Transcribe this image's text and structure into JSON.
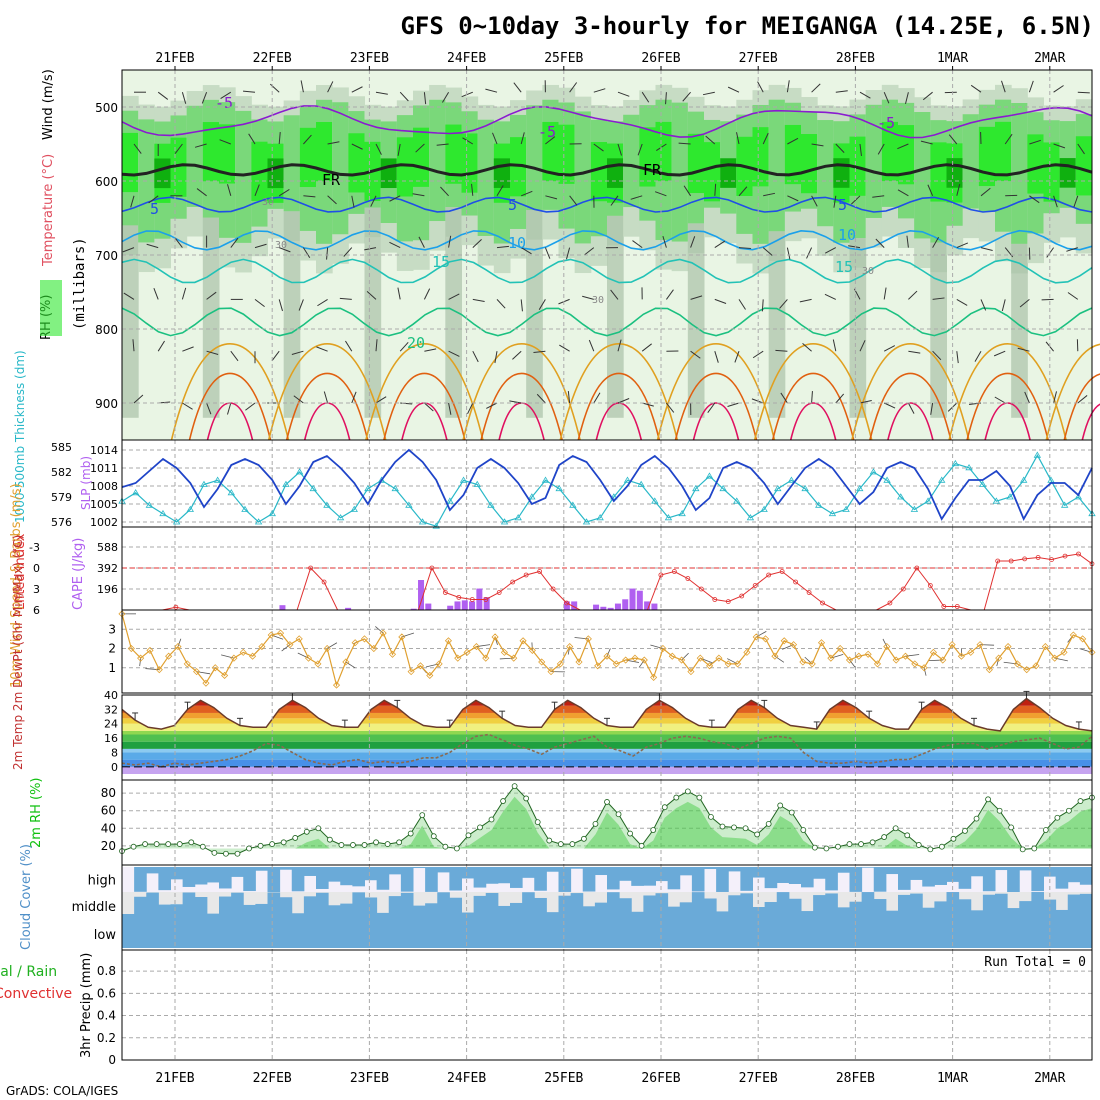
{
  "title": "GFS 0~10day 3-hourly for MEIGANGA (14.25E, 6.5N)",
  "credit": "GrADS: COLA/IGES",
  "run_total": "Run Total = 0",
  "colors": {
    "rh_light": "#e9f5e4",
    "rh_mid": "#c7dcc4",
    "rh_dark": "#a9c2a8",
    "rh_green": "#7ad87a",
    "rh_bright": "#2ee82e",
    "rh_deep": "#0fb00f",
    "freezing": "#222222",
    "t_minus5": "#8a1bd0",
    "t_5": "#1f4fe6",
    "t_10": "#1ba0ea",
    "t_15": "#22c2b6",
    "t_20": "#1bc080",
    "t_25": "#e0a020",
    "t_30": "#e06010",
    "t_35": "#e01060",
    "slp": "#1f44c8",
    "thickness": "#29b8c8",
    "lifted": "#e03030",
    "cape": "#b060f0",
    "wind": "#e0a030",
    "rh2m": "#10c010",
    "cloud": "#6aaad8",
    "cloud_bg": "#e8e8e8",
    "high_bg": "#f4f0fa",
    "grid": "#aaaaaa"
  },
  "chart_data": [
    {
      "panel": "profile",
      "type": "heatmap",
      "title": "RH / Temperature / Wind",
      "ylabel_parts": [
        "RH (%)",
        "Temperature (°C)",
        "Wind (m/s)"
      ],
      "ylabel_units": "(millibars)",
      "ylim": [
        950,
        450
      ],
      "yticks": [
        500,
        600,
        700,
        800,
        900
      ],
      "contour_labels": [
        "-5",
        "-5",
        "-5",
        "FR",
        "FR",
        "5",
        "5",
        "5",
        "10",
        "10",
        "15",
        "15",
        "20",
        "30",
        "30",
        "30",
        "30"
      ]
    },
    {
      "panel": "slp_thickness",
      "type": "line",
      "ylabel_left": "1000-500mb Thickness (dm)",
      "ylabel_right": "SLP (mb)",
      "yticks_left": [
        576,
        579,
        582,
        585
      ],
      "yticks_right": [
        1002,
        1005,
        1008,
        1011,
        1014
      ],
      "series": [
        {
          "name": "SLP (mb)",
          "values": [
            1007.8,
            1008.5,
            1010.5,
            1012.5,
            1011,
            1008.5,
            1004.5,
            1007.5,
            1011.5,
            1012.5,
            1011.5,
            1009,
            1005,
            1008,
            1012,
            1013,
            1011,
            1008.5,
            1005,
            1009,
            1012,
            1014,
            1012,
            1009,
            1004,
            1006.5,
            1011,
            1012.5,
            1011,
            1008.5,
            1005,
            1006,
            1011.5,
            1013,
            1012,
            1009,
            1005.5,
            1008,
            1011.5,
            1013,
            1011,
            1008,
            1004,
            1006,
            1011,
            1012,
            1011,
            1008.5,
            1005,
            1008,
            1011,
            1012.5,
            1011,
            1008,
            1005,
            1007,
            1011,
            1012,
            1011,
            1007.5,
            1002.5,
            1006,
            1009,
            1009,
            1010.5,
            1008,
            1002.5,
            1006.5,
            1008.5,
            1008.5,
            1006.5,
            1011
          ]
        },
        {
          "name": "Thickness (dm)",
          "values": [
            578.5,
            579.5,
            578,
            577,
            576,
            577.5,
            580.5,
            581,
            579.5,
            577.5,
            576,
            577,
            580.5,
            582,
            580,
            578,
            576.5,
            577.5,
            580,
            581,
            580,
            578,
            576,
            575.5,
            578.5,
            581,
            580.5,
            578,
            576,
            576.5,
            579,
            581,
            580,
            578,
            576,
            576.5,
            579,
            581,
            580.5,
            578.5,
            576.5,
            577,
            580,
            581.5,
            580,
            578.5,
            576.5,
            577.5,
            580,
            581,
            580,
            578,
            577,
            577.5,
            580,
            582,
            581,
            579,
            577.5,
            578.5,
            581,
            583,
            582.5,
            580.5,
            578.5,
            579,
            581,
            584,
            581,
            578,
            579,
            577
          ]
        }
      ]
    },
    {
      "panel": "cape_li",
      "type": "bar",
      "ylabel_left": "Lifted Index",
      "ylabel_right": "CAPE (J/kg)",
      "yticks_left": [
        -3,
        0,
        3,
        6
      ],
      "yticks_right": [
        196,
        392,
        588
      ],
      "lifted_index_series": {
        "name": "Lifted Index",
        "values": [
          6,
          6,
          6,
          6,
          5.6,
          6,
          6,
          6,
          6,
          6,
          6,
          6,
          6,
          6,
          0,
          2,
          6,
          6,
          6,
          6,
          6,
          6,
          6,
          0,
          3.5,
          4.2,
          4.5,
          4.5,
          3.5,
          2,
          1,
          0.5,
          3,
          5,
          6,
          6,
          6,
          6,
          6,
          6,
          1,
          0.5,
          1.5,
          3,
          4.5,
          4.8,
          4,
          2.5,
          1,
          0.5,
          2,
          3.5,
          5,
          6,
          6,
          6,
          6,
          5,
          3,
          0,
          2.5,
          5.5,
          5.5,
          6,
          6,
          -1,
          -1,
          -1.3,
          -1.5,
          -1.2,
          -1.7,
          -2,
          -0.6
        ]
      },
      "cape_series": {
        "name": "CAPE (J/kg)",
        "values": [
          0,
          0,
          0,
          0,
          0,
          0,
          0,
          0,
          0,
          0,
          0,
          0,
          0,
          0,
          0,
          0,
          0,
          0,
          0,
          0,
          0,
          0,
          45,
          0,
          0,
          0,
          0,
          0,
          0,
          0,
          0,
          20,
          0,
          0,
          0,
          0,
          0,
          0,
          0,
          0,
          12,
          280,
          60,
          0,
          0,
          40,
          80,
          90,
          80,
          200,
          120,
          0,
          0,
          0,
          0,
          0,
          0,
          0,
          0,
          0,
          0,
          80,
          80,
          0,
          0,
          50,
          30,
          20,
          60,
          100,
          200,
          180,
          80,
          60,
          0,
          0,
          0,
          0,
          0,
          0,
          0,
          0,
          0,
          0,
          0,
          0,
          0,
          0,
          0,
          0,
          0,
          0,
          0,
          0,
          0,
          0,
          0,
          0,
          0,
          0,
          0,
          0,
          0,
          0,
          0,
          0,
          0,
          0,
          0,
          0,
          0,
          0,
          0,
          0,
          0,
          0,
          0,
          0,
          0,
          0,
          0,
          0,
          0,
          0,
          0,
          0,
          0,
          0,
          0,
          0,
          0,
          0,
          0,
          0
        ]
      }
    },
    {
      "panel": "wind10m",
      "type": "line",
      "ylabel": "10m Wind Speed & Barbs (m/s)",
      "yticks": [
        1,
        2,
        3
      ],
      "series": [
        {
          "name": "10m Wind Speed",
          "values": [
            3.8,
            2,
            1.5,
            1.9,
            0.9,
            1.6,
            2.1,
            1.2,
            0.8,
            0.2,
            1,
            0.6,
            1.5,
            1.8,
            1.6,
            2.1,
            2.7,
            2.8,
            2.2,
            2.5,
            1.5,
            1.2,
            2,
            0.1,
            1.3,
            2.3,
            2.5,
            2,
            2.8,
            1.7,
            2.6,
            0.8,
            1.1,
            0.6,
            1.2,
            2.4,
            1.5,
            1.8,
            2.1,
            1.5,
            2.6,
            1.8,
            1.5,
            2.4,
            1.9,
            1.3,
            0.8,
            1.2,
            2.1,
            1.3,
            2.5,
            1.1,
            1.6,
            1.2,
            1.4,
            1.5,
            1.4,
            0.5,
            2,
            1.6,
            1.4,
            0.8,
            1.5,
            1.1,
            1.5,
            1.2,
            1.2,
            1.8,
            2.6,
            2.5,
            1.6,
            2.4,
            2.2,
            1.3,
            1.2,
            2.3,
            1.5,
            2,
            1.4,
            1.6,
            1.7,
            1.2,
            2.1,
            1.4,
            1.6,
            1.2,
            1,
            1.8,
            1.4,
            2.2,
            1.6,
            1.8,
            2.2,
            0.9,
            1.5,
            2.1,
            1.2,
            0.9,
            1.1,
            2.1,
            1.5,
            1.8,
            2.7,
            2.5,
            1.8
          ]
        }
      ]
    },
    {
      "panel": "temp2m",
      "type": "area",
      "ylabel": "2m Temp 2m DewPt (6hr Min/Max) (°C)",
      "yticks": [
        0,
        8,
        16,
        24,
        32,
        40
      ],
      "series": [
        {
          "name": "2m Temp",
          "values": [
            32,
            26,
            22,
            21,
            23,
            32,
            37,
            33,
            27,
            23,
            22,
            22,
            32,
            37,
            33,
            27,
            23,
            22,
            22,
            32,
            37,
            33,
            27,
            23,
            22,
            22,
            32,
            37,
            33,
            27,
            23,
            22,
            22,
            32,
            37,
            33,
            27,
            23,
            22,
            22,
            32,
            37,
            33,
            27,
            23,
            22,
            22,
            32,
            37,
            33,
            27,
            23,
            22,
            21,
            32,
            37,
            33,
            27,
            23,
            21,
            21,
            32,
            37,
            33,
            27,
            23,
            21,
            20,
            32,
            38,
            33,
            27,
            23,
            21,
            20
          ]
        },
        {
          "name": "2m DewPt",
          "values": [
            2,
            1,
            2,
            0,
            2,
            1,
            2,
            3,
            4,
            6,
            9,
            13,
            12,
            8,
            4,
            2,
            1,
            3,
            4,
            2,
            3,
            2,
            3,
            5,
            5,
            8,
            13,
            17,
            18,
            15,
            12,
            10,
            7,
            11,
            13,
            15,
            17,
            11,
            9,
            6,
            11,
            13,
            16,
            17,
            16,
            14,
            13,
            10,
            13,
            16,
            17,
            16,
            8,
            3,
            2,
            2,
            3,
            2,
            3,
            4,
            4,
            7,
            10,
            12,
            13,
            13,
            10,
            12,
            14,
            15,
            16,
            13,
            10,
            11,
            17
          ]
        }
      ]
    },
    {
      "panel": "rh2m",
      "type": "area",
      "ylabel": "2m RH (%)",
      "yticks": [
        20,
        40,
        60,
        80
      ],
      "series": [
        {
          "name": "2m RH",
          "values": [
            14,
            19,
            22,
            22,
            22,
            22,
            24,
            19,
            12,
            11,
            11,
            17,
            20,
            22,
            24,
            29,
            36,
            40,
            27,
            21,
            21,
            21,
            24,
            22,
            24,
            34,
            55,
            31,
            19,
            17,
            32,
            41,
            50,
            71,
            88,
            74,
            47,
            26,
            22,
            22,
            28,
            45,
            70,
            56,
            34,
            20,
            38,
            64,
            75,
            82,
            75,
            53,
            42,
            41,
            40,
            33,
            45,
            66,
            58,
            38,
            18,
            17,
            19,
            22,
            22,
            24,
            30,
            40,
            32,
            21,
            16,
            19,
            28,
            37,
            51,
            73,
            60,
            41,
            16,
            17,
            38,
            52,
            60,
            71,
            75
          ]
        }
      ]
    },
    {
      "panel": "cloud",
      "type": "table",
      "ylabel": "Cloud Cover (%)",
      "rows": [
        "high",
        "middle",
        "low"
      ]
    },
    {
      "panel": "precip",
      "type": "bar",
      "ylabel_left": "Total / Rain Convective",
      "ylabel": "3hr Precip (mm)",
      "yticks": [
        0,
        0.2,
        0.4,
        0.6,
        0.8
      ],
      "values": []
    }
  ],
  "date_labels": [
    "21FEB",
    "22FEB",
    "23FEB",
    "24FEB",
    "25FEB",
    "26FEB",
    "27FEB",
    "28FEB",
    "1MAR",
    "2MAR"
  ]
}
